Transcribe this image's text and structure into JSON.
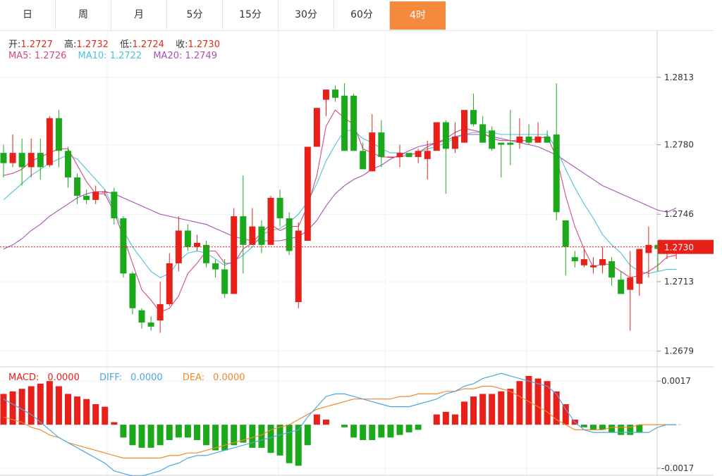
{
  "tabs": [
    {
      "label": "日",
      "active": false
    },
    {
      "label": "周",
      "active": false
    },
    {
      "label": "月",
      "active": false
    },
    {
      "label": "5分",
      "active": false
    },
    {
      "label": "15分",
      "active": false
    },
    {
      "label": "30分",
      "active": false
    },
    {
      "label": "60分",
      "active": false
    },
    {
      "label": "4时",
      "active": true
    }
  ],
  "ohlc_legend": {
    "open_label": "开:",
    "open": "1.2727",
    "high_label": "高:",
    "high": "1.2732",
    "low_label": "低:",
    "low": "1.2724",
    "close_label": "收:",
    "close": "1.2730"
  },
  "ma_legend": {
    "ma5": "MA5: 1.2726",
    "ma10": "MA10: 1.2722",
    "ma20": "MA20: 1.2749"
  },
  "macd_legend": {
    "macd_label": "MACD:",
    "macd": "0.0000",
    "diff_label": "DIFF:",
    "diff": "0.0000",
    "dea_label": "DEA:",
    "dea": "0.0000"
  },
  "colors": {
    "up": "#e8201a",
    "down": "#1ba81b",
    "ma5": "#d9467f",
    "ma10": "#4cc1d8",
    "ma20": "#a651b6",
    "diff": "#4da6df",
    "dea": "#ee8a2b",
    "accent": "#f5893c"
  },
  "chart_data": {
    "type": "candlestick",
    "price_ticks": [
      "1.2813",
      "1.2780",
      "1.2746",
      "1.2713",
      "1.2679"
    ],
    "current_price": "1.2730",
    "price_range": [
      1.2672,
      1.2836
    ],
    "macd_ticks": [
      "0.0017",
      "-0.0017"
    ],
    "macd_range": [
      -0.002,
      0.0022
    ],
    "candles": [
      [
        1.2776,
        1.2771,
        1.278,
        1.2764
      ],
      [
        1.2771,
        1.2776,
        1.2785,
        1.2769
      ],
      [
        1.2776,
        1.2769,
        1.2783,
        1.276
      ],
      [
        1.2769,
        1.2776,
        1.2783,
        1.2764
      ],
      [
        1.2776,
        1.2769,
        1.2783,
        1.2763
      ],
      [
        1.277,
        1.2793,
        1.2794,
        1.2769
      ],
      [
        1.2793,
        1.2777,
        1.2797,
        1.2769
      ],
      [
        1.2777,
        1.2764,
        1.2779,
        1.2759
      ],
      [
        1.2764,
        1.2755,
        1.2766,
        1.2751
      ],
      [
        1.2755,
        1.2753,
        1.2758,
        1.2751
      ],
      [
        1.2753,
        1.2757,
        1.276,
        1.2751
      ],
      [
        1.2757,
        1.2757,
        1.2758,
        1.2755
      ],
      [
        1.2757,
        1.2744,
        1.2759,
        1.2741
      ],
      [
        1.2744,
        1.2717,
        1.2745,
        1.2715
      ],
      [
        1.2717,
        1.27,
        1.2718,
        1.2697
      ],
      [
        1.2699,
        1.2693,
        1.27,
        1.269
      ],
      [
        1.2693,
        1.2691,
        1.2696,
        1.2689
      ],
      [
        1.2694,
        1.2702,
        1.2713,
        1.2688
      ],
      [
        1.2702,
        1.2722,
        1.2727,
        1.2701
      ],
      [
        1.2722,
        1.2738,
        1.2745,
        1.2718
      ],
      [
        1.2738,
        1.273,
        1.2741,
        1.2728
      ],
      [
        1.273,
        1.2732,
        1.2736,
        1.2728
      ],
      [
        1.2731,
        1.2722,
        1.2733,
        1.272
      ],
      [
        1.2722,
        1.2719,
        1.2724,
        1.2715
      ],
      [
        1.2719,
        1.2707,
        1.2724,
        1.2705
      ],
      [
        1.2707,
        1.2745,
        1.2749,
        1.2707
      ],
      [
        1.2745,
        1.2731,
        1.2765,
        1.2717
      ],
      [
        1.2731,
        1.274,
        1.2749,
        1.2731
      ],
      [
        1.274,
        1.2731,
        1.2743,
        1.2727
      ],
      [
        1.2731,
        1.2754,
        1.2755,
        1.2731
      ],
      [
        1.2754,
        1.2744,
        1.2758,
        1.274
      ],
      [
        1.2744,
        1.2728,
        1.2747,
        1.2726
      ],
      [
        1.2703,
        1.2738,
        1.2742,
        1.27
      ],
      [
        1.2733,
        1.2779,
        1.2779,
        1.2733
      ],
      [
        1.2779,
        1.2798,
        1.2798,
        1.2779
      ],
      [
        1.2802,
        1.2807,
        1.2807,
        1.2794
      ],
      [
        1.2807,
        1.2803,
        1.2809,
        1.2801
      ],
      [
        1.2804,
        1.2777,
        1.281,
        1.2777
      ],
      [
        1.2804,
        1.2777,
        1.2805,
        1.2777
      ],
      [
        1.2777,
        1.2768,
        1.2781,
        1.2768
      ],
      [
        1.2767,
        1.2786,
        1.2795,
        1.2767
      ],
      [
        1.2786,
        1.2774,
        1.2792,
        1.2769
      ],
      [
        1.2774,
        1.2774,
        1.2774,
        1.2774
      ],
      [
        1.2774,
        1.2776,
        1.278,
        1.2769
      ],
      [
        1.2776,
        1.2774,
        1.2776,
        1.2774
      ],
      [
        1.2774,
        1.2777,
        1.2778,
        1.2771
      ],
      [
        1.2773,
        1.2777,
        1.2782,
        1.2763
      ],
      [
        1.2777,
        1.2791,
        1.2791,
        1.2777
      ],
      [
        1.2791,
        1.2778,
        1.2792,
        1.2756
      ],
      [
        1.2778,
        1.2784,
        1.2791,
        1.2776
      ],
      [
        1.2781,
        1.2797,
        1.2797,
        1.2783
      ],
      [
        1.2797,
        1.279,
        1.2805,
        1.2789
      ],
      [
        1.279,
        1.2781,
        1.2794,
        1.2781
      ],
      [
        1.2787,
        1.2778,
        1.2789,
        1.2777
      ],
      [
        1.2781,
        1.278,
        1.2781,
        1.2764
      ],
      [
        1.2781,
        1.278,
        1.2797,
        1.277
      ],
      [
        1.2781,
        1.2784,
        1.2793,
        1.2778
      ],
      [
        1.2784,
        1.2781,
        1.279,
        1.278
      ],
      [
        1.2781,
        1.2784,
        1.2791,
        1.2781
      ],
      [
        1.2784,
        1.2781,
        1.2787,
        1.2781
      ],
      [
        1.2785,
        1.2747,
        1.281,
        1.2743
      ],
      [
        1.2743,
        1.273,
        1.2743,
        1.2716
      ],
      [
        1.2725,
        1.2723,
        1.2728,
        1.272
      ],
      [
        1.2721,
        1.2724,
        1.2729,
        1.272
      ],
      [
        1.272,
        1.2721,
        1.2725,
        1.2717
      ],
      [
        1.2721,
        1.2724,
        1.273,
        1.2717
      ],
      [
        1.2723,
        1.2715,
        1.2725,
        1.2711
      ],
      [
        1.2714,
        1.2707,
        1.2718,
        1.2707
      ],
      [
        1.2709,
        1.2715,
        1.2728,
        1.2689
      ],
      [
        1.2712,
        1.2729,
        1.2729,
        1.2706
      ],
      [
        1.2727,
        1.2731,
        1.274,
        1.2715
      ],
      [
        1.2731,
        1.2729,
        1.2733,
        1.2718
      ],
      [
        1.2729,
        1.2731,
        1.2732,
        1.2724
      ],
      [
        1.2727,
        1.273,
        1.2732,
        1.2724
      ]
    ],
    "ma5": [
      1.2765,
      1.2766,
      1.2768,
      1.2772,
      1.2774,
      1.2776,
      1.2778,
      1.2778,
      1.277,
      1.2762,
      1.2756,
      1.2756,
      1.2747,
      1.2735,
      1.2722,
      1.2709,
      1.2704,
      1.2698,
      1.27,
      1.2706,
      1.2717,
      1.2722,
      1.2728,
      1.2728,
      1.2722,
      1.2722,
      1.2729,
      1.2732,
      1.2737,
      1.2741,
      1.2738,
      1.274,
      1.274,
      1.275,
      1.2765,
      1.2789,
      1.2797,
      1.2793,
      1.279,
      1.2778,
      1.2776,
      1.2774,
      1.2774,
      1.2774,
      1.2775,
      1.2776,
      1.2779,
      1.2781,
      1.2783,
      1.2786,
      1.2788,
      1.2787,
      1.2786,
      1.2783,
      1.2782,
      1.2782,
      1.2782,
      1.2782,
      1.2783,
      1.2784,
      1.2774,
      1.2755,
      1.274,
      1.2729,
      1.272,
      1.2722,
      1.2721,
      1.2718,
      1.2715,
      1.2716,
      1.2718,
      1.2721,
      1.2725,
      1.2726
    ],
    "ma10": [
      1.2753,
      1.2757,
      1.2761,
      1.2765,
      1.2768,
      1.2771,
      1.2773,
      1.2775,
      1.2773,
      1.2768,
      1.2763,
      1.2758,
      1.2748,
      1.2738,
      1.273,
      1.2724,
      1.2718,
      1.2715,
      1.2717,
      1.2723,
      1.2727,
      1.2728,
      1.2727,
      1.2724,
      1.2721,
      1.2723,
      1.2726,
      1.273,
      1.2736,
      1.2738,
      1.2739,
      1.2742,
      1.2746,
      1.2752,
      1.2761,
      1.2772,
      1.278,
      1.2787,
      1.2787,
      1.2783,
      1.2781,
      1.2778,
      1.2776,
      1.2776,
      1.2775,
      1.2776,
      1.2778,
      1.2779,
      1.2781,
      1.2783,
      1.2785,
      1.2786,
      1.2786,
      1.2786,
      1.2785,
      1.2785,
      1.2785,
      1.2785,
      1.2785,
      1.2785,
      1.2778,
      1.2768,
      1.2759,
      1.2751,
      1.2744,
      1.2736,
      1.2731,
      1.2727,
      1.2721,
      1.2718,
      1.2717,
      1.2718,
      1.2719,
      1.2719
    ],
    "ma20": [
      1.2729,
      1.2731,
      1.2734,
      1.2738,
      1.2741,
      1.2745,
      1.2748,
      1.2751,
      1.2754,
      1.2756,
      1.2757,
      1.2757,
      1.2756,
      1.2754,
      1.2752,
      1.275,
      1.2748,
      1.2746,
      1.2745,
      1.2744,
      1.2743,
      1.2742,
      1.2741,
      1.2739,
      1.2737,
      1.2735,
      1.2734,
      1.2733,
      1.2733,
      1.2733,
      1.2733,
      1.2734,
      1.2735,
      1.2738,
      1.2743,
      1.275,
      1.2756,
      1.276,
      1.2763,
      1.2765,
      1.2768,
      1.277,
      1.2773,
      1.2775,
      1.2777,
      1.2779,
      1.278,
      1.2781,
      1.2782,
      1.2784,
      1.2785,
      1.2785,
      1.2785,
      1.2784,
      1.2783,
      1.2782,
      1.2781,
      1.278,
      1.2779,
      1.2777,
      1.2775,
      1.2772,
      1.2769,
      1.2766,
      1.2763,
      1.276,
      1.2758,
      1.2756,
      1.2754,
      1.2752,
      1.275,
      1.2748,
      1.2747,
      1.2749
    ],
    "macd_hist": [
      0.0012,
      0.0013,
      0.0014,
      0.0015,
      0.0016,
      0.0017,
      0.0015,
      0.0012,
      0.0011,
      0.001,
      0.0008,
      0.0007,
      0.0001,
      -0.0005,
      -0.0008,
      -0.0009,
      -0.0009,
      -0.0008,
      -0.0006,
      -0.0005,
      -0.0005,
      -0.0006,
      -0.0008,
      -0.001,
      -0.001,
      -0.0008,
      -0.0007,
      -0.0009,
      -0.0009,
      -0.0011,
      -0.0012,
      -0.0015,
      -0.0016,
      -0.0008,
      0.0004,
      0.0002,
      0.0,
      -0.0001,
      -0.0005,
      -0.0006,
      -0.0006,
      -0.0005,
      -0.0005,
      -0.0004,
      -0.0003,
      -0.0002,
      0.0,
      0.0004,
      0.0005,
      0.0004,
      0.0009,
      0.0011,
      0.0012,
      0.0012,
      0.0013,
      0.0014,
      0.0017,
      0.0019,
      0.0018,
      0.0017,
      0.0013,
      0.0008,
      0.0002,
      -0.0001,
      -0.0002,
      -0.0002,
      -0.0003,
      -0.0004,
      -0.0004,
      -0.0003,
      0.0,
      0.0,
      0.0,
      0.0
    ],
    "diff": [
      0.001,
      0.0008,
      0.0006,
      0.0004,
      0.0001,
      -0.0002,
      -0.0005,
      -0.0007,
      -0.0009,
      -0.0011,
      -0.0013,
      -0.0015,
      -0.0018,
      -0.0019,
      -0.002,
      -0.002,
      -0.0019,
      -0.0018,
      -0.0016,
      -0.0015,
      -0.0013,
      -0.0012,
      -0.0012,
      -0.0011,
      -0.001,
      -0.0009,
      -0.0008,
      -0.0007,
      -0.0006,
      -0.0005,
      -0.0004,
      -0.0003,
      -0.0002,
      0.0003,
      0.0007,
      0.0011,
      0.0012,
      0.0012,
      0.0011,
      0.001,
      0.0009,
      0.0008,
      0.0007,
      0.0007,
      0.0007,
      0.0008,
      0.0009,
      0.001,
      0.0012,
      0.0013,
      0.0015,
      0.0016,
      0.0018,
      0.0019,
      0.002,
      0.0019,
      0.0018,
      0.0017,
      0.0016,
      0.0015,
      0.0012,
      0.0006,
      0.0001,
      -0.0002,
      -0.0003,
      -0.0003,
      -0.0003,
      -0.0003,
      -0.0003,
      -0.0003,
      -0.0003,
      -0.0001,
      0.0,
      0.0
    ],
    "dea": [
      0.0003,
      0.0002,
      0.0001,
      -0.0001,
      -0.0002,
      -0.0004,
      -0.0005,
      -0.0007,
      -0.0008,
      -0.0009,
      -0.001,
      -0.0011,
      -0.0012,
      -0.0013,
      -0.0013,
      -0.0013,
      -0.0013,
      -0.0013,
      -0.0012,
      -0.0012,
      -0.0011,
      -0.0011,
      -0.001,
      -0.0009,
      -0.0008,
      -0.0007,
      -0.0006,
      -0.0005,
      -0.0004,
      -0.0002,
      -0.0001,
      0.0,
      0.0002,
      0.0004,
      0.0006,
      0.0007,
      0.0008,
      0.0009,
      0.001,
      0.001,
      0.001,
      0.001,
      0.001,
      0.0011,
      0.0011,
      0.0012,
      0.0012,
      0.0012,
      0.0013,
      0.0013,
      0.0014,
      0.0014,
      0.0015,
      0.0015,
      0.0014,
      0.0013,
      0.0011,
      0.0009,
      0.0007,
      0.0005,
      0.0002,
      0.0,
      -0.0002,
      -0.0002,
      -0.0002,
      -0.0002,
      -0.0001,
      -0.0001,
      -0.0001,
      0.0,
      0.0,
      0.0,
      0.0,
      0.0
    ]
  }
}
